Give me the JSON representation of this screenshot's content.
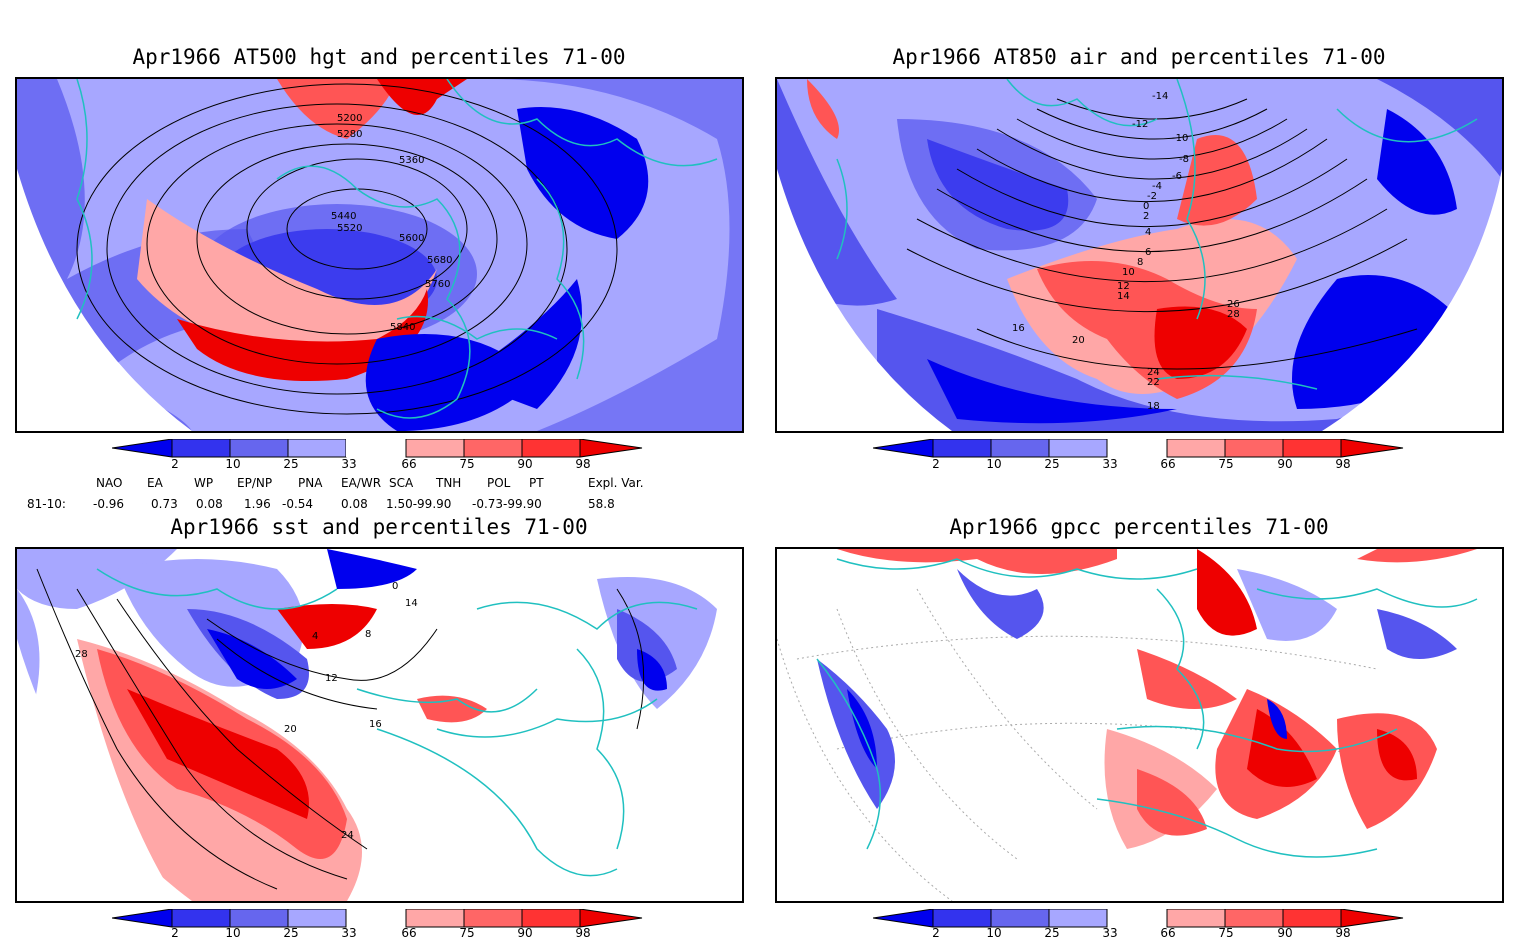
{
  "panels": [
    {
      "id": "p1",
      "title": "Apr1966 AT500 hgt and percentiles 71-00",
      "contour_labels": [
        "5200",
        "5280",
        "5360",
        "5440",
        "5520",
        "5600",
        "5680",
        "5760",
        "5840"
      ]
    },
    {
      "id": "p2",
      "title": "Apr1966 AT850 air and percentiles 71-00",
      "contour_labels": [
        "-14",
        "-12",
        "-10",
        "-8",
        "-6",
        "-4",
        "-2",
        "0",
        "2",
        "4",
        "6",
        "8",
        "10",
        "12",
        "14",
        "16",
        "18",
        "20",
        "22",
        "24",
        "26",
        "28"
      ]
    },
    {
      "id": "p3",
      "title": "Apr1966 sst and percentiles 71-00",
      "contour_labels": [
        "0",
        "4",
        "8",
        "12",
        "14",
        "16",
        "20",
        "24",
        "28"
      ]
    },
    {
      "id": "p4",
      "title": "Apr1966 gpcc percentiles 71-00",
      "contour_labels": []
    }
  ],
  "colorbar": {
    "labels": [
      "2",
      "10",
      "25",
      "33",
      "66",
      "75",
      "90",
      "98"
    ],
    "colors": [
      "#0000ee",
      "#3333ee",
      "#6666ee",
      "#a7a7ff",
      "#ffffff",
      "#ffa7a7",
      "#ff6666",
      "#ff3333",
      "#ee0000"
    ]
  },
  "indices": {
    "headers": [
      "NAO",
      "EA",
      "WP",
      "EP/NP",
      "PNA",
      "EA/WR",
      "SCA",
      "TNH",
      "POL",
      "PT",
      "Expl. Var."
    ],
    "row_label": "81-10:",
    "values": [
      "-0.96",
      "0.73",
      "0.08",
      "1.96",
      "-0.54",
      "0.08",
      "1.50-99.90",
      "-0.73-99.90",
      "",
      "",
      "58.8"
    ]
  },
  "colors": {
    "coast": "#20c0c0",
    "blue_dark": "#0000ee",
    "blue_mid": "#5555ee",
    "blue_light": "#a7a7ff",
    "red_light": "#ffa7a7",
    "red_mid": "#ff5555",
    "red_dark": "#ee0000"
  }
}
